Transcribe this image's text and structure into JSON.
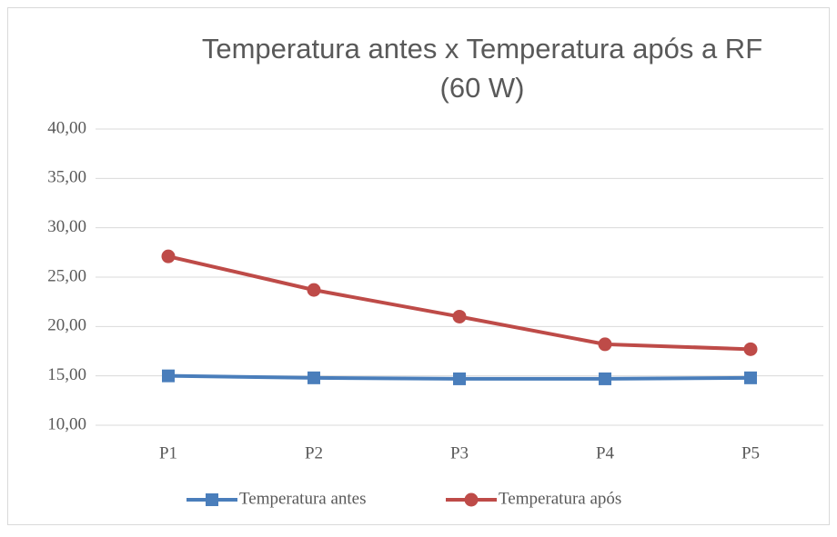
{
  "chart_data": {
    "type": "line",
    "title": [
      "Temperatura antes x Temperatura após a RF",
      "(60 W)"
    ],
    "categories": [
      "P1",
      "P2",
      "P3",
      "P4",
      "P5"
    ],
    "series": [
      {
        "name": "Temperatura antes",
        "color": "#4a7ebb",
        "values": [
          15.0,
          14.8,
          14.7,
          14.7,
          14.8
        ]
      },
      {
        "name": "Temperatura após",
        "color": "#be4b48",
        "values": [
          27.1,
          23.7,
          21.0,
          18.2,
          17.7
        ]
      }
    ],
    "ylim": [
      10,
      40
    ],
    "yticks": [
      {
        "value": 10,
        "label": "10,00"
      },
      {
        "value": 15,
        "label": "15,00"
      },
      {
        "value": 20,
        "label": "20,00"
      },
      {
        "value": 25,
        "label": "25,00"
      },
      {
        "value": 30,
        "label": "30,00"
      },
      {
        "value": 35,
        "label": "35,00"
      },
      {
        "value": 40,
        "label": "40,00"
      }
    ],
    "grid": true,
    "legend": "bottom"
  }
}
